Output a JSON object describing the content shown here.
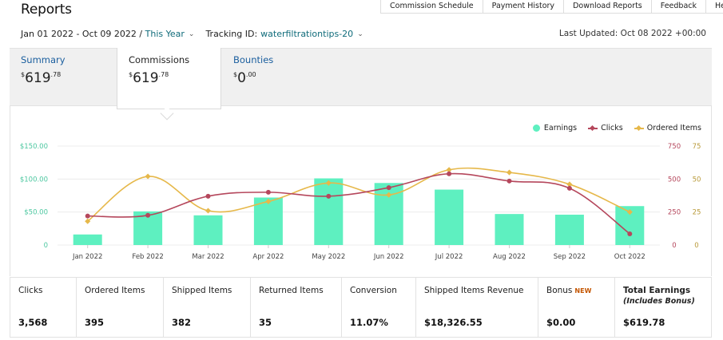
{
  "header": {
    "title": "Reports",
    "nav": [
      "Commission Schedule",
      "Payment History",
      "Download Reports",
      "Feedback",
      "Help"
    ]
  },
  "filters": {
    "date_range": "Jan 01 2022 - Oct 09 2022",
    "separator": " / ",
    "period": "This Year",
    "tracking_label": "Tracking ID:",
    "tracking_id": "waterfiltrationtips-20",
    "last_updated": "Last Updated: Oct 08 2022 +00:00"
  },
  "tabs": {
    "summary": {
      "label": "Summary",
      "currency": "$",
      "whole": "619",
      "cents": ".78"
    },
    "commissions": {
      "label": "Commissions",
      "currency": "$",
      "whole": "619",
      "cents": ".78"
    },
    "bounties": {
      "label": "Bounties",
      "currency": "$",
      "whole": "0",
      "cents": ".00"
    }
  },
  "legend": {
    "earnings": "Earnings",
    "clicks": "Clicks",
    "ordered": "Ordered Items"
  },
  "colors": {
    "earnings": "#5ef0c0",
    "clicks": "#b5475c",
    "ordered": "#e6b84a",
    "left_axis": "#4cc7a0",
    "mid_axis": "#b5475c",
    "right_axis": "#b99a3a"
  },
  "chart_data": {
    "type": "bar",
    "categories": [
      "Jan 2022",
      "Feb 2022",
      "Mar 2022",
      "Apr 2022",
      "May 2022",
      "Jun 2022",
      "Jul 2022",
      "Aug 2022",
      "Sep 2022",
      "Oct 2022"
    ],
    "series": [
      {
        "name": "Earnings",
        "type": "bar",
        "axis": "left",
        "values": [
          16,
          51,
          45,
          72,
          101,
          94,
          84,
          47,
          46,
          59
        ]
      },
      {
        "name": "Clicks",
        "type": "line",
        "axis": "middle",
        "values": [
          220,
          225,
          370,
          400,
          370,
          435,
          540,
          485,
          430,
          85
        ]
      },
      {
        "name": "Ordered Items",
        "type": "line",
        "axis": "right",
        "values": [
          18,
          52,
          26,
          33,
          47,
          38,
          57,
          55,
          46,
          25
        ]
      }
    ],
    "y_left": {
      "ticks": [
        "0",
        "$50.00",
        "$100.00",
        "$150.00"
      ],
      "range": [
        0,
        150
      ]
    },
    "y_mid": {
      "ticks": [
        "0",
        "250",
        "500",
        "750"
      ],
      "range": [
        0,
        750
      ]
    },
    "y_right": {
      "ticks": [
        "0",
        "25",
        "50",
        "75"
      ],
      "range": [
        0,
        75
      ]
    },
    "legend_position": "top-right",
    "grid": true
  },
  "stats": [
    {
      "label": "Clicks",
      "value": "3,568"
    },
    {
      "label": "Ordered Items",
      "value": "395"
    },
    {
      "label": "Shipped Items",
      "value": "382"
    },
    {
      "label": "Returned Items",
      "value": "35"
    },
    {
      "label": "Conversion",
      "value": "11.07%"
    },
    {
      "label": "Shipped Items Revenue",
      "value": "$18,326.55"
    },
    {
      "label": "Bonus",
      "badge": "NEW",
      "value": "$0.00"
    },
    {
      "label": "Total Earnings",
      "sub": "(Includes Bonus)",
      "value": "$619.78"
    }
  ]
}
